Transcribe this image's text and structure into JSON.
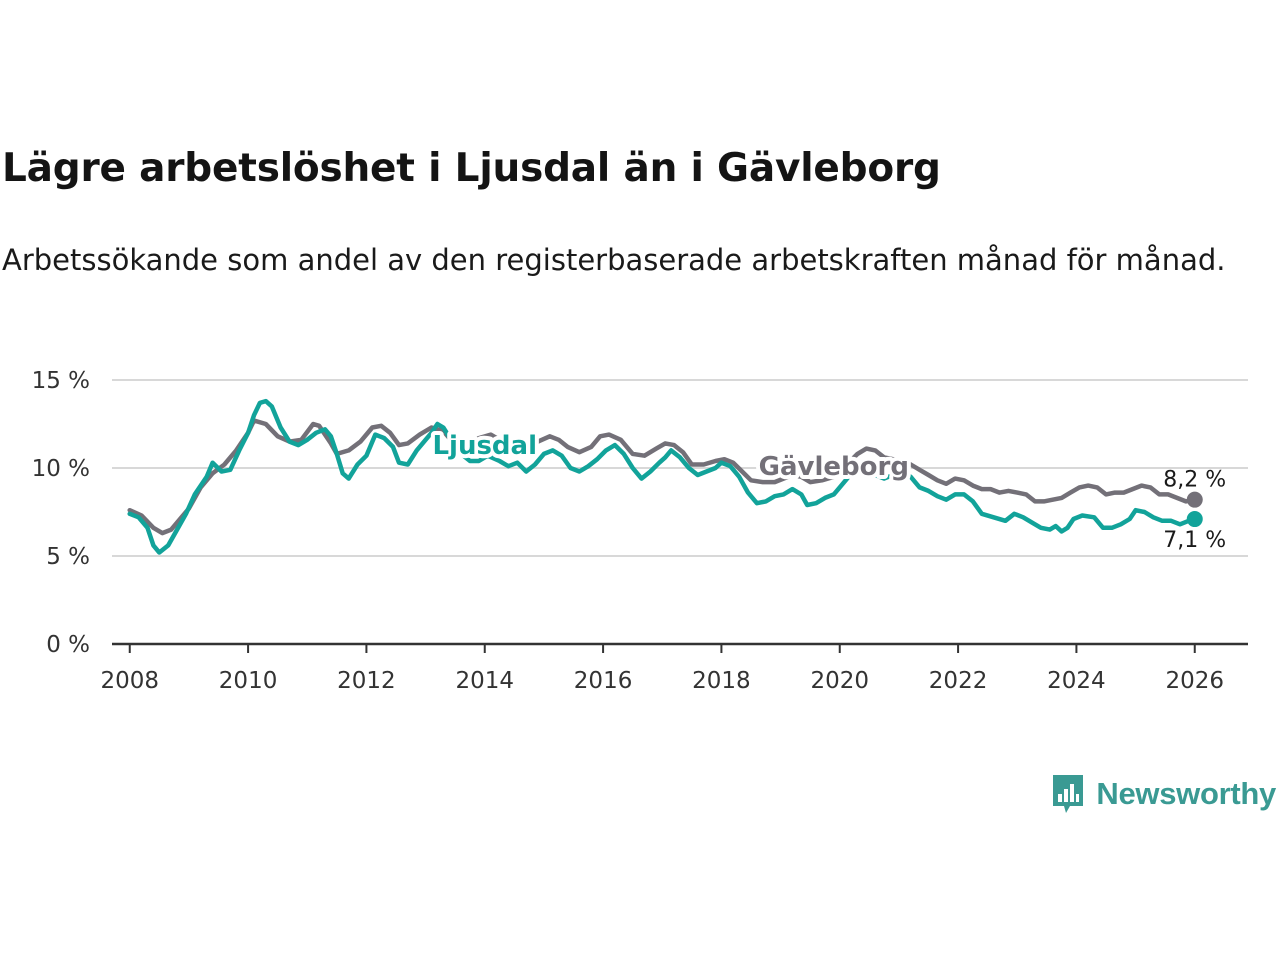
{
  "header": {
    "title": "Lägre arbetslöshet i Ljusdal än i Gävleborg",
    "subtitle": "Arbetssökande som andel av den registerbaserade arbetskraften månad för månad."
  },
  "brand": {
    "name": "Newsworthy",
    "color": "#3a9a93"
  },
  "colors": {
    "ljusdal": "#12a39a",
    "gavleborg": "#737078",
    "grid": "#d8d8d8",
    "axis": "#333333"
  },
  "chart_data": {
    "type": "line",
    "title": "Lägre arbetslöshet i Ljusdal än i Gävleborg",
    "xlabel": "",
    "ylabel": "",
    "xlim": [
      2007.7,
      2026.9
    ],
    "ylim": [
      0,
      15
    ],
    "x_ticks": [
      2008,
      2010,
      2012,
      2014,
      2016,
      2018,
      2020,
      2022,
      2024,
      2026
    ],
    "x_tick_labels": [
      "2008",
      "2010",
      "2012",
      "2014",
      "2016",
      "2018",
      "2020",
      "2022",
      "2024",
      "2026"
    ],
    "y_ticks": [
      0,
      5,
      10,
      15
    ],
    "y_tick_labels": [
      "0 %",
      "5 %",
      "10 %",
      "15 %"
    ],
    "grid": true,
    "series": [
      {
        "name": "Gävleborg",
        "label": "Gävleborg",
        "color": "#737078",
        "end_label": "8,2 %",
        "points": [
          [
            2008.0,
            7.6
          ],
          [
            2008.2,
            7.3
          ],
          [
            2008.4,
            6.6
          ],
          [
            2008.55,
            6.3
          ],
          [
            2008.7,
            6.5
          ],
          [
            2008.85,
            7.1
          ],
          [
            2009.0,
            7.7
          ],
          [
            2009.2,
            8.9
          ],
          [
            2009.4,
            9.7
          ],
          [
            2009.6,
            10.2
          ],
          [
            2009.8,
            11.0
          ],
          [
            2010.0,
            12.0
          ],
          [
            2010.1,
            12.7
          ],
          [
            2010.3,
            12.5
          ],
          [
            2010.5,
            11.8
          ],
          [
            2010.7,
            11.5
          ],
          [
            2010.9,
            11.6
          ],
          [
            2011.1,
            12.5
          ],
          [
            2011.2,
            12.4
          ],
          [
            2011.4,
            11.4
          ],
          [
            2011.5,
            10.8
          ],
          [
            2011.7,
            11.0
          ],
          [
            2011.9,
            11.5
          ],
          [
            2012.1,
            12.3
          ],
          [
            2012.25,
            12.4
          ],
          [
            2012.4,
            12.0
          ],
          [
            2012.55,
            11.3
          ],
          [
            2012.7,
            11.4
          ],
          [
            2012.9,
            11.9
          ],
          [
            2013.1,
            12.3
          ],
          [
            2013.3,
            12.1
          ],
          [
            2013.5,
            11.3
          ],
          [
            2013.7,
            11.2
          ],
          [
            2013.9,
            11.7
          ],
          [
            2014.1,
            11.9
          ],
          [
            2014.3,
            11.5
          ],
          [
            2014.5,
            11.1
          ],
          [
            2014.7,
            10.9
          ],
          [
            2014.9,
            11.5
          ],
          [
            2015.1,
            11.8
          ],
          [
            2015.25,
            11.6
          ],
          [
            2015.4,
            11.2
          ],
          [
            2015.6,
            10.9
          ],
          [
            2015.8,
            11.2
          ],
          [
            2015.95,
            11.8
          ],
          [
            2016.1,
            11.9
          ],
          [
            2016.3,
            11.6
          ],
          [
            2016.5,
            10.8
          ],
          [
            2016.7,
            10.7
          ],
          [
            2016.9,
            11.1
          ],
          [
            2017.05,
            11.4
          ],
          [
            2017.2,
            11.3
          ],
          [
            2017.35,
            10.9
          ],
          [
            2017.5,
            10.2
          ],
          [
            2017.7,
            10.2
          ],
          [
            2017.9,
            10.4
          ],
          [
            2018.05,
            10.5
          ],
          [
            2018.2,
            10.3
          ],
          [
            2018.35,
            9.8
          ],
          [
            2018.5,
            9.3
          ],
          [
            2018.7,
            9.2
          ],
          [
            2018.9,
            9.2
          ],
          [
            2019.05,
            9.4
          ],
          [
            2019.2,
            9.6
          ],
          [
            2019.35,
            9.5
          ],
          [
            2019.5,
            9.2
          ],
          [
            2019.7,
            9.3
          ],
          [
            2019.9,
            9.5
          ],
          [
            2020.0,
            9.7
          ],
          [
            2020.15,
            10.3
          ],
          [
            2020.3,
            10.8
          ],
          [
            2020.45,
            11.1
          ],
          [
            2020.6,
            11.0
          ],
          [
            2020.75,
            10.6
          ],
          [
            2020.9,
            10.5
          ],
          [
            2021.05,
            10.4
          ],
          [
            2021.2,
            10.2
          ],
          [
            2021.35,
            9.9
          ],
          [
            2021.5,
            9.6
          ],
          [
            2021.65,
            9.3
          ],
          [
            2021.8,
            9.1
          ],
          [
            2021.95,
            9.4
          ],
          [
            2022.1,
            9.3
          ],
          [
            2022.25,
            9.0
          ],
          [
            2022.4,
            8.8
          ],
          [
            2022.55,
            8.8
          ],
          [
            2022.7,
            8.6
          ],
          [
            2022.85,
            8.7
          ],
          [
            2023.0,
            8.6
          ],
          [
            2023.15,
            8.5
          ],
          [
            2023.3,
            8.1
          ],
          [
            2023.45,
            8.1
          ],
          [
            2023.6,
            8.2
          ],
          [
            2023.75,
            8.3
          ],
          [
            2023.9,
            8.6
          ],
          [
            2024.05,
            8.9
          ],
          [
            2024.2,
            9.0
          ],
          [
            2024.35,
            8.9
          ],
          [
            2024.5,
            8.5
          ],
          [
            2024.65,
            8.6
          ],
          [
            2024.8,
            8.6
          ],
          [
            2024.95,
            8.8
          ],
          [
            2025.1,
            9.0
          ],
          [
            2025.25,
            8.9
          ],
          [
            2025.4,
            8.5
          ],
          [
            2025.55,
            8.5
          ],
          [
            2025.7,
            8.3
          ],
          [
            2025.85,
            8.1
          ],
          [
            2026.0,
            8.2
          ]
        ]
      },
      {
        "name": "Ljusdal",
        "label": "Ljusdal",
        "color": "#12a39a",
        "end_label": "7,1 %",
        "points": [
          [
            2008.0,
            7.4
          ],
          [
            2008.15,
            7.2
          ],
          [
            2008.3,
            6.6
          ],
          [
            2008.4,
            5.6
          ],
          [
            2008.5,
            5.2
          ],
          [
            2008.65,
            5.6
          ],
          [
            2008.8,
            6.5
          ],
          [
            2008.95,
            7.4
          ],
          [
            2009.1,
            8.5
          ],
          [
            2009.3,
            9.5
          ],
          [
            2009.4,
            10.3
          ],
          [
            2009.55,
            9.8
          ],
          [
            2009.7,
            9.9
          ],
          [
            2009.85,
            11.0
          ],
          [
            2010.0,
            12.0
          ],
          [
            2010.1,
            13.0
          ],
          [
            2010.2,
            13.7
          ],
          [
            2010.3,
            13.8
          ],
          [
            2010.4,
            13.5
          ],
          [
            2010.55,
            12.3
          ],
          [
            2010.7,
            11.5
          ],
          [
            2010.85,
            11.3
          ],
          [
            2011.0,
            11.6
          ],
          [
            2011.15,
            12.0
          ],
          [
            2011.3,
            12.2
          ],
          [
            2011.4,
            11.8
          ],
          [
            2011.5,
            10.8
          ],
          [
            2011.6,
            9.7
          ],
          [
            2011.7,
            9.4
          ],
          [
            2011.85,
            10.2
          ],
          [
            2012.0,
            10.7
          ],
          [
            2012.15,
            11.9
          ],
          [
            2012.3,
            11.7
          ],
          [
            2012.45,
            11.2
          ],
          [
            2012.55,
            10.3
          ],
          [
            2012.7,
            10.2
          ],
          [
            2012.85,
            11.0
          ],
          [
            2013.0,
            11.6
          ],
          [
            2013.1,
            12.0
          ],
          [
            2013.2,
            12.5
          ],
          [
            2013.3,
            12.3
          ],
          [
            2013.45,
            11.5
          ],
          [
            2013.6,
            10.8
          ],
          [
            2013.75,
            10.4
          ],
          [
            2013.9,
            10.4
          ],
          [
            2014.05,
            10.7
          ],
          [
            2014.25,
            10.4
          ],
          [
            2014.4,
            10.1
          ],
          [
            2014.55,
            10.3
          ],
          [
            2014.7,
            9.8
          ],
          [
            2014.85,
            10.2
          ],
          [
            2015.0,
            10.8
          ],
          [
            2015.15,
            11.0
          ],
          [
            2015.3,
            10.7
          ],
          [
            2015.45,
            10.0
          ],
          [
            2015.6,
            9.8
          ],
          [
            2015.75,
            10.1
          ],
          [
            2015.9,
            10.5
          ],
          [
            2016.05,
            11.0
          ],
          [
            2016.2,
            11.3
          ],
          [
            2016.35,
            10.8
          ],
          [
            2016.5,
            10.0
          ],
          [
            2016.65,
            9.4
          ],
          [
            2016.8,
            9.8
          ],
          [
            2016.95,
            10.3
          ],
          [
            2017.05,
            10.6
          ],
          [
            2017.15,
            11.0
          ],
          [
            2017.3,
            10.6
          ],
          [
            2017.45,
            10.0
          ],
          [
            2017.6,
            9.6
          ],
          [
            2017.75,
            9.8
          ],
          [
            2017.9,
            10.0
          ],
          [
            2018.0,
            10.3
          ],
          [
            2018.15,
            10.1
          ],
          [
            2018.3,
            9.5
          ],
          [
            2018.45,
            8.6
          ],
          [
            2018.6,
            8.0
          ],
          [
            2018.75,
            8.1
          ],
          [
            2018.9,
            8.4
          ],
          [
            2019.05,
            8.5
          ],
          [
            2019.2,
            8.8
          ],
          [
            2019.35,
            8.5
          ],
          [
            2019.45,
            7.9
          ],
          [
            2019.6,
            8.0
          ],
          [
            2019.75,
            8.3
          ],
          [
            2019.9,
            8.5
          ],
          [
            2020.0,
            8.9
          ],
          [
            2020.15,
            9.5
          ],
          [
            2020.3,
            9.8
          ],
          [
            2020.45,
            9.9
          ],
          [
            2020.6,
            9.6
          ],
          [
            2020.75,
            9.4
          ],
          [
            2020.9,
            9.6
          ],
          [
            2021.05,
            9.8
          ],
          [
            2021.2,
            9.5
          ],
          [
            2021.35,
            8.9
          ],
          [
            2021.5,
            8.7
          ],
          [
            2021.65,
            8.4
          ],
          [
            2021.8,
            8.2
          ],
          [
            2021.95,
            8.5
          ],
          [
            2022.1,
            8.5
          ],
          [
            2022.25,
            8.1
          ],
          [
            2022.4,
            7.4
          ],
          [
            2022.6,
            7.2
          ],
          [
            2022.8,
            7.0
          ],
          [
            2022.95,
            7.4
          ],
          [
            2023.1,
            7.2
          ],
          [
            2023.25,
            6.9
          ],
          [
            2023.4,
            6.6
          ],
          [
            2023.55,
            6.5
          ],
          [
            2023.65,
            6.7
          ],
          [
            2023.75,
            6.4
          ],
          [
            2023.85,
            6.6
          ],
          [
            2023.95,
            7.1
          ],
          [
            2024.1,
            7.3
          ],
          [
            2024.3,
            7.2
          ],
          [
            2024.45,
            6.6
          ],
          [
            2024.6,
            6.6
          ],
          [
            2024.75,
            6.8
          ],
          [
            2024.9,
            7.1
          ],
          [
            2025.0,
            7.6
          ],
          [
            2025.15,
            7.5
          ],
          [
            2025.3,
            7.2
          ],
          [
            2025.45,
            7.0
          ],
          [
            2025.6,
            7.0
          ],
          [
            2025.75,
            6.8
          ],
          [
            2025.9,
            7.0
          ],
          [
            2026.0,
            7.1
          ]
        ]
      }
    ]
  }
}
